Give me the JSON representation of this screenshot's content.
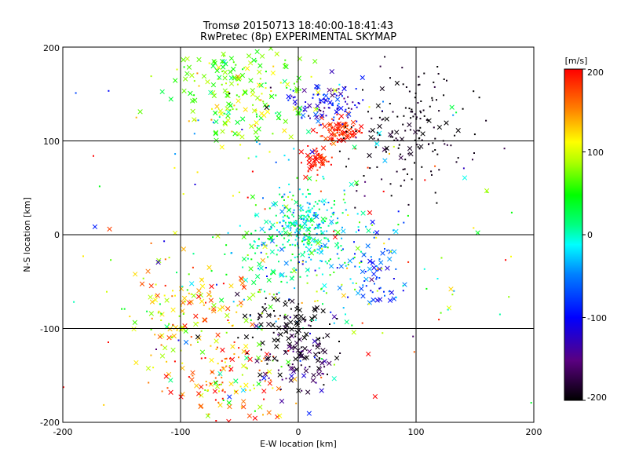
{
  "chart_data": {
    "type": "scatter",
    "title": "Tromsø 20150713 18:40:00-18:41:43",
    "subtitle": "RwPretec (8p) EXPERIMENTAL SKYMAP",
    "xlabel": "E-W location [km]",
    "ylabel": "N-S location [km]",
    "xlim": [
      -200,
      200
    ],
    "ylim": [
      -200,
      200
    ],
    "x_ticks": [
      "-200",
      "-100",
      "0",
      "100",
      "200"
    ],
    "y_ticks": [
      "-200",
      "-100",
      "0",
      "100",
      "200"
    ],
    "grid": true,
    "colorbar": {
      "label": "[m/s]",
      "range": [
        -200,
        200
      ],
      "ticks": [
        "200",
        "100",
        "0",
        "-100",
        "-200"
      ],
      "colormap": "rainbow (black-purple-blue-cyan-green-yellow-red)"
    },
    "markers": [
      "x (larger echoes)",
      "small dot"
    ],
    "clusters": [
      {
        "cx": 5,
        "cy": 10,
        "sx": 18,
        "sy": 18,
        "n": 260,
        "vmean": 0,
        "vsd": 35,
        "xfrac": 0.15
      },
      {
        "cx": -5,
        "cy": -30,
        "sx": 30,
        "sy": 30,
        "n": 160,
        "vmean": 10,
        "vsd": 50,
        "xfrac": 0.2
      },
      {
        "cx": 35,
        "cy": 110,
        "sx": 8,
        "sy": 8,
        "n": 90,
        "vmean": 185,
        "vsd": 15,
        "xfrac": 0.45
      },
      {
        "cx": 15,
        "cy": 78,
        "sx": 5,
        "sy": 8,
        "n": 50,
        "vmean": 195,
        "vsd": 10,
        "xfrac": 0.4
      },
      {
        "cx": 25,
        "cy": 140,
        "sx": 18,
        "sy": 10,
        "n": 110,
        "vmean": -110,
        "vsd": 35,
        "xfrac": 0.3
      },
      {
        "cx": 95,
        "cy": 110,
        "sx": 28,
        "sy": 35,
        "n": 170,
        "vmean": -195,
        "vsd": 10,
        "xfrac": 0.15
      },
      {
        "cx": -40,
        "cy": 140,
        "sx": 25,
        "sy": 25,
        "n": 140,
        "vmean": 80,
        "vsd": 30,
        "xfrac": 0.6
      },
      {
        "cx": -55,
        "cy": 170,
        "sx": 30,
        "sy": 15,
        "n": 60,
        "vmean": 65,
        "vsd": 20,
        "xfrac": 0.7
      },
      {
        "cx": -85,
        "cy": -80,
        "sx": 30,
        "sy": 25,
        "n": 130,
        "vmean": 120,
        "vsd": 50,
        "xfrac": 0.55
      },
      {
        "cx": -65,
        "cy": -160,
        "sx": 30,
        "sy": 25,
        "n": 150,
        "vmean": 140,
        "vsd": 50,
        "xfrac": 0.5
      },
      {
        "cx": 0,
        "cy": -130,
        "sx": 18,
        "sy": 18,
        "n": 110,
        "vmean": -170,
        "vsd": 40,
        "xfrac": 0.55
      },
      {
        "cx": 60,
        "cy": -40,
        "sx": 15,
        "sy": 22,
        "n": 70,
        "vmean": -70,
        "vsd": 30,
        "xfrac": 0.5
      },
      {
        "cx": -10,
        "cy": -90,
        "sx": 18,
        "sy": 15,
        "n": 80,
        "vmean": -200,
        "vsd": 10,
        "xfrac": 0.55
      },
      {
        "cx": 0,
        "cy": 0,
        "sx": 110,
        "sy": 110,
        "n": 220,
        "vmean": 40,
        "vsd": 110,
        "xfrac": 0.25
      }
    ]
  }
}
